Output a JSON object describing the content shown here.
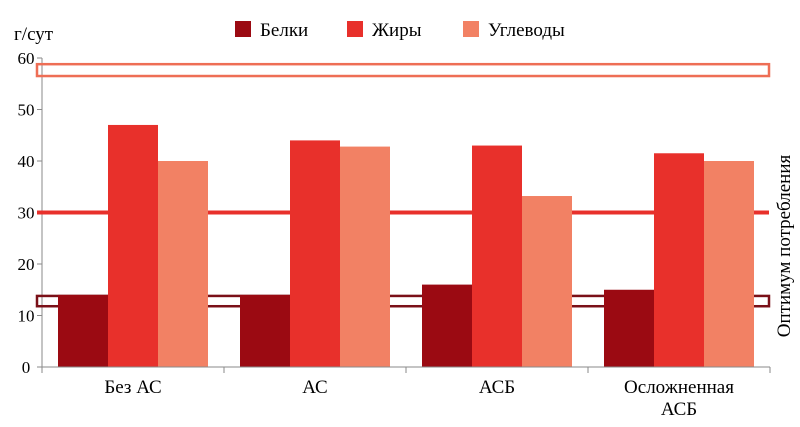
{
  "chart_data": {
    "type": "bar",
    "unit_label": "г/сут",
    "categories": [
      "Без АС",
      "АС",
      "АСБ",
      "Осложненная АСБ"
    ],
    "category_lines": [
      [
        "Без АС"
      ],
      [
        "АС"
      ],
      [
        "АСБ"
      ],
      [
        "Осложненная",
        "АСБ"
      ]
    ],
    "series": [
      {
        "name": "Белки",
        "values": [
          14,
          14,
          16,
          15
        ],
        "color": "#9b0a12"
      },
      {
        "name": "Жиры",
        "values": [
          47,
          44,
          43,
          41.5
        ],
        "color": "#e8302b"
      },
      {
        "name": "Углеводы",
        "values": [
          40,
          42.8,
          33.2,
          40
        ],
        "color": "#f28164"
      }
    ],
    "ylim": [
      0,
      60
    ],
    "yticks": [
      0,
      10,
      20,
      30,
      40,
      50,
      60
    ],
    "grid": false,
    "legend_position": "top",
    "optimum_label": "Оптимум потребления",
    "optimum_bands": [
      {
        "series": "Белки",
        "from": 11.8,
        "to": 13.8,
        "color": "#7a1018"
      },
      {
        "series": "Жиры",
        "value": 30,
        "color": "#e8302b"
      },
      {
        "series": "Углеводы",
        "from": 56.5,
        "to": 58.8,
        "color": "#ee6e55"
      }
    ]
  }
}
